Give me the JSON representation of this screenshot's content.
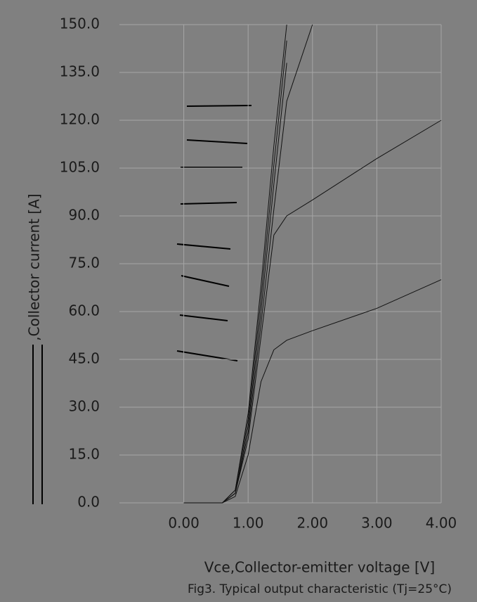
{
  "chart_data": {
    "type": "line",
    "title": "Fig3. Typical output characteristic (Tj=25°C)",
    "x_label": "Vce,Collector-emitter voltage [V]",
    "y_label": ",Collector current [A]",
    "x": [
      0,
      0.6,
      0.8,
      1.0,
      1.2,
      1.4,
      1.6,
      2.0,
      3.0,
      4.0
    ],
    "series": [
      {
        "color": "#111111",
        "values": [
          0,
          0,
          4,
          28,
          68,
          112,
          150,
          null,
          null,
          null
        ]
      },
      {
        "color": "#111111",
        "values": [
          0,
          0,
          4,
          26,
          64,
          106,
          145,
          null,
          null,
          null
        ]
      },
      {
        "color": "#111111",
        "values": [
          0,
          0,
          3,
          24,
          60,
          100,
          138,
          null,
          null,
          null
        ]
      },
      {
        "color": "#111111",
        "values": [
          0,
          0,
          3,
          22,
          56,
          92,
          126,
          150,
          null,
          null
        ]
      },
      {
        "color": "#111111",
        "values": [
          0,
          0,
          3,
          20,
          52,
          84,
          90,
          95,
          108,
          120
        ]
      },
      {
        "color": "#111111",
        "values": [
          0,
          0,
          2,
          15,
          38,
          48,
          51,
          54,
          61,
          70
        ]
      }
    ],
    "xlim": [
      -1,
      4
    ],
    "xticks": [
      {
        "value": 0,
        "label": "0.00"
      },
      {
        "value": 1,
        "label": "1.00"
      },
      {
        "value": 2,
        "label": "2.00"
      },
      {
        "value": 3,
        "label": "3.00"
      },
      {
        "value": 4,
        "label": "4.00"
      }
    ],
    "ylim": [
      0,
      150
    ],
    "yticks": [
      {
        "value": 0,
        "label": "0.0"
      },
      {
        "value": 15,
        "label": "15.0"
      },
      {
        "value": 30,
        "label": "30.0"
      },
      {
        "value": 45,
        "label": "45.0"
      },
      {
        "value": 60,
        "label": "60.0"
      },
      {
        "value": 75,
        "label": "75.0"
      },
      {
        "value": 90,
        "label": "90.0"
      },
      {
        "value": 105,
        "label": "105.0"
      },
      {
        "value": 120,
        "label": "120.0"
      },
      {
        "value": 135,
        "label": "135.0"
      },
      {
        "value": 150,
        "label": "150.0"
      }
    ],
    "grid": true
  }
}
